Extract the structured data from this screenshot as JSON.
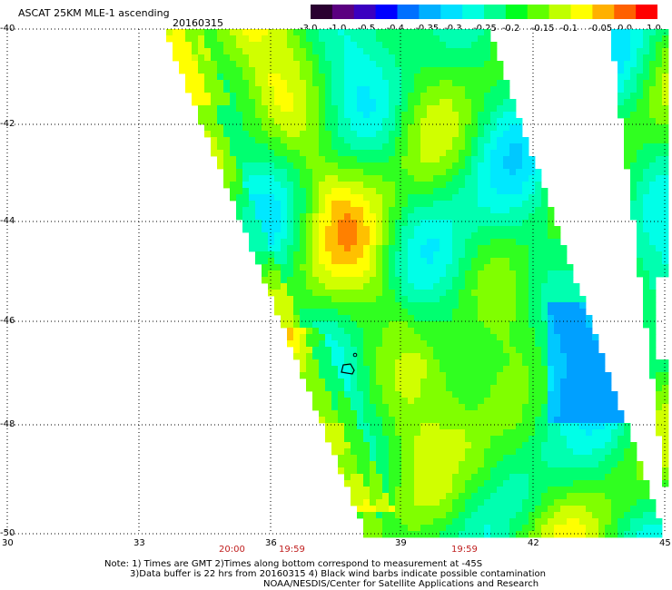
{
  "header": {
    "title": "ASCAT 25KM MLE-1 ascending",
    "date": "20160315"
  },
  "colorbar": {
    "colors": [
      "#2a0030",
      "#5a0080",
      "#3a00c0",
      "#0000ff",
      "#0070ff",
      "#00b0ff",
      "#00e0ff",
      "#00ffe0",
      "#00ff90",
      "#00ff20",
      "#60ff00",
      "#c0ff00",
      "#ffff00",
      "#ffb000",
      "#ff6000",
      "#ff0000"
    ],
    "labels": [
      "-3.0",
      "-1.0",
      "-0.5",
      "-0.4",
      "-0.35",
      "-0.3",
      "-0.25",
      "-0.2",
      "-0.15",
      "-0.1",
      "-0.05",
      "0.0",
      "1.0"
    ]
  },
  "axes": {
    "lat_labels": [
      "-40",
      "-42",
      "-44",
      "-46",
      "-48",
      "-50"
    ],
    "lon_labels": [
      "30",
      "33",
      "36",
      "39",
      "42",
      "45"
    ]
  },
  "times": [
    "20:00",
    "19:59",
    "19:59"
  ],
  "notes": {
    "line1": "Note: 1) Times are GMT 2)Times along bottom correspond to measurement at -45S",
    "line2": "3)Data buffer is 22 hrs from 20160315 4) Black wind barbs indicate possible contamination",
    "line3": "NOAA/NESDIS/Center for Satellite Applications and Research"
  },
  "colors": {
    "time_label": "#c02020",
    "field_background": "#ffffff"
  }
}
